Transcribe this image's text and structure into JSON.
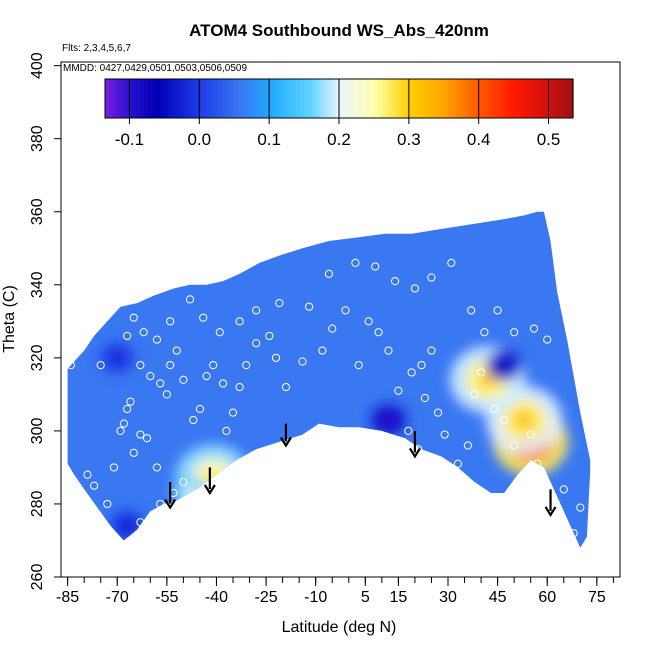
{
  "chart_data": {
    "type": "heatmap",
    "title": "ATOM4 Southbound WS_Abs_420nm",
    "subtitle_flights": "Flts: 2,3,4,5,6,7",
    "subtitle_dates": "MMDD: 0427,0429,0501,0503,0506,0509",
    "xlabel": "Latitude (deg N)",
    "ylabel": "Theta (C)",
    "xlim": [
      -87,
      82
    ],
    "ylim": [
      260,
      401
    ],
    "x_ticks": [
      -85,
      -70,
      -55,
      -40,
      -25,
      -10,
      5,
      15,
      30,
      45,
      60,
      75
    ],
    "x_tick_labels": [
      "-85",
      "-70",
      "-55",
      "-40",
      "-25",
      "-10",
      "5",
      "15",
      "30",
      "45",
      "60",
      "75"
    ],
    "y_ticks": [
      260,
      280,
      300,
      320,
      340,
      360,
      380,
      400
    ],
    "y_tick_labels": [
      "260",
      "280",
      "300",
      "320",
      "340",
      "360",
      "380",
      "400"
    ],
    "colorbar": {
      "range": [
        -0.135,
        0.535
      ],
      "ticks": [
        -0.1,
        0.0,
        0.1,
        0.2,
        0.3,
        0.4,
        0.5
      ],
      "tick_labels": [
        "-0.1",
        "0.0",
        "0.1",
        "0.2",
        "0.3",
        "0.4",
        "0.5"
      ],
      "bins": [
        -0.135,
        -0.1,
        0.0,
        0.1,
        0.2,
        0.3,
        0.4,
        0.5,
        0.535
      ],
      "bin_colors": [
        "#7b1fe0",
        "#0000b4",
        "#3a7bff",
        "#22c8ff",
        "#ffffb0",
        "#ffa500",
        "#ff1a00",
        "#a01010"
      ]
    },
    "grid": false,
    "legend": "none",
    "field_outline": {
      "top": [
        [
          -85,
          317
        ],
        [
          -83,
          319
        ],
        [
          -80,
          322
        ],
        [
          -77,
          326
        ],
        [
          -73,
          330
        ],
        [
          -69,
          334
        ],
        [
          -64,
          335
        ],
        [
          -59,
          337
        ],
        [
          -53,
          339
        ],
        [
          -48,
          340
        ],
        [
          -43,
          340
        ],
        [
          -38,
          341
        ],
        [
          -33,
          343
        ],
        [
          -27,
          346
        ],
        [
          -21,
          348
        ],
        [
          -14,
          350
        ],
        [
          -6,
          352
        ],
        [
          3,
          353
        ],
        [
          11,
          354
        ],
        [
          19,
          354
        ],
        [
          26,
          355
        ],
        [
          33,
          356
        ],
        [
          40,
          357
        ],
        [
          47,
          358
        ],
        [
          53,
          359
        ],
        [
          57,
          360
        ],
        [
          59,
          360
        ],
        [
          61,
          352
        ],
        [
          63,
          338
        ],
        [
          66,
          325
        ],
        [
          70,
          305
        ],
        [
          73,
          292
        ]
      ],
      "bottom": [
        [
          73,
          289
        ],
        [
          72,
          271
        ],
        [
          70,
          268
        ],
        [
          67,
          274
        ],
        [
          63,
          282
        ],
        [
          59,
          290
        ],
        [
          55,
          292
        ],
        [
          51,
          288
        ],
        [
          47,
          283
        ],
        [
          43,
          283
        ],
        [
          38,
          286
        ],
        [
          33,
          290
        ],
        [
          28,
          293
        ],
        [
          22,
          295
        ],
        [
          17,
          298
        ],
        [
          10,
          300
        ],
        [
          3,
          301
        ],
        [
          -3,
          301
        ],
        [
          -9,
          302
        ],
        [
          -14,
          299
        ],
        [
          -21,
          297
        ],
        [
          -28,
          295
        ],
        [
          -34,
          292
        ],
        [
          -40,
          288
        ],
        [
          -46,
          284
        ],
        [
          -52,
          281
        ],
        [
          -56,
          280
        ],
        [
          -60,
          278
        ],
        [
          -64,
          273
        ],
        [
          -68,
          270
        ],
        [
          -72,
          274
        ],
        [
          -76,
          279
        ],
        [
          -80,
          284
        ],
        [
          -83,
          288
        ],
        [
          -85,
          291
        ]
      ]
    },
    "hotspots": [
      {
        "x": 55,
        "y": 297,
        "value": 0.46
      },
      {
        "x": 53,
        "y": 303,
        "value": 0.32
      },
      {
        "x": 42,
        "y": 314,
        "value": 0.31
      },
      {
        "x": -41,
        "y": 287,
        "value": 0.28
      },
      {
        "x": -48,
        "y": 283,
        "value": 0.22
      },
      {
        "x": 12,
        "y": 303,
        "value": -0.11
      },
      {
        "x": 47,
        "y": 318,
        "value": -0.08
      },
      {
        "x": -67,
        "y": 274,
        "value": -0.04
      },
      {
        "x": -70,
        "y": 320,
        "value": -0.03
      }
    ],
    "sample_points": [
      [
        -84,
        318
      ],
      [
        -79,
        288
      ],
      [
        -77,
        285
      ],
      [
        -73,
        280
      ],
      [
        -71,
        290
      ],
      [
        -69,
        300
      ],
      [
        -68,
        302
      ],
      [
        -67,
        306
      ],
      [
        -66,
        308
      ],
      [
        -65,
        294
      ],
      [
        -63,
        299
      ],
      [
        -61,
        298
      ],
      [
        -63,
        318
      ],
      [
        -60,
        315
      ],
      [
        -57,
        313
      ],
      [
        -55,
        310
      ],
      [
        -54,
        318
      ],
      [
        -52,
        322
      ],
      [
        -50,
        314
      ],
      [
        -47,
        303
      ],
      [
        -45,
        306
      ],
      [
        -43,
        315
      ],
      [
        -41,
        318
      ],
      [
        -38,
        313
      ],
      [
        -37,
        300
      ],
      [
        -35,
        305
      ],
      [
        -33,
        312
      ],
      [
        -31,
        318
      ],
      [
        -28,
        324
      ],
      [
        -24,
        326
      ],
      [
        -22,
        320
      ],
      [
        -19,
        312
      ],
      [
        -14,
        319
      ],
      [
        -10,
        300
      ],
      [
        -8,
        322
      ],
      [
        -5,
        328
      ],
      [
        -1,
        333
      ],
      [
        3,
        318
      ],
      [
        6,
        330
      ],
      [
        9,
        327
      ],
      [
        12,
        322
      ],
      [
        15,
        311
      ],
      [
        18,
        300
      ],
      [
        21,
        295
      ],
      [
        23,
        309
      ],
      [
        27,
        305
      ],
      [
        29,
        299
      ],
      [
        33,
        291
      ],
      [
        36,
        296
      ],
      [
        38,
        310
      ],
      [
        40,
        316
      ],
      [
        44,
        306
      ],
      [
        47,
        303
      ],
      [
        50,
        296
      ],
      [
        53,
        283
      ],
      [
        55,
        299
      ],
      [
        57,
        291
      ],
      [
        60,
        281
      ],
      [
        62,
        278
      ],
      [
        65,
        284
      ],
      [
        68,
        272
      ],
      [
        70,
        279
      ],
      [
        -67,
        326
      ],
      [
        -65,
        331
      ],
      [
        -62,
        327
      ],
      [
        -58,
        325
      ],
      [
        -54,
        330
      ],
      [
        -48,
        336
      ],
      [
        -44,
        331
      ],
      [
        -39,
        327
      ],
      [
        -33,
        330
      ],
      [
        -28,
        333
      ],
      [
        -21,
        335
      ],
      [
        -12,
        334
      ],
      [
        -6,
        343
      ],
      [
        2,
        346
      ],
      [
        8,
        345
      ],
      [
        14,
        341
      ],
      [
        20,
        339
      ],
      [
        25,
        342
      ],
      [
        31,
        346
      ],
      [
        37,
        333
      ],
      [
        41,
        327
      ],
      [
        45,
        333
      ],
      [
        50,
        327
      ],
      [
        56,
        328
      ],
      [
        60,
        325
      ],
      [
        19,
        316
      ],
      [
        22,
        318
      ],
      [
        25,
        322
      ],
      [
        -75,
        318
      ],
      [
        -57,
        280
      ],
      [
        -53,
        283
      ],
      [
        -50,
        286
      ],
      [
        -68,
        269
      ],
      [
        -63,
        275
      ],
      [
        -58,
        290
      ]
    ],
    "arrows": [
      {
        "x": -54,
        "y_top": 286,
        "y_bottom": 279
      },
      {
        "x": -42,
        "y_top": 290,
        "y_bottom": 283
      },
      {
        "x": -19,
        "y_top": 302,
        "y_bottom": 296
      },
      {
        "x": 20,
        "y_top": 300,
        "y_bottom": 293
      },
      {
        "x": 61,
        "y_top": 284,
        "y_bottom": 277
      }
    ]
  }
}
